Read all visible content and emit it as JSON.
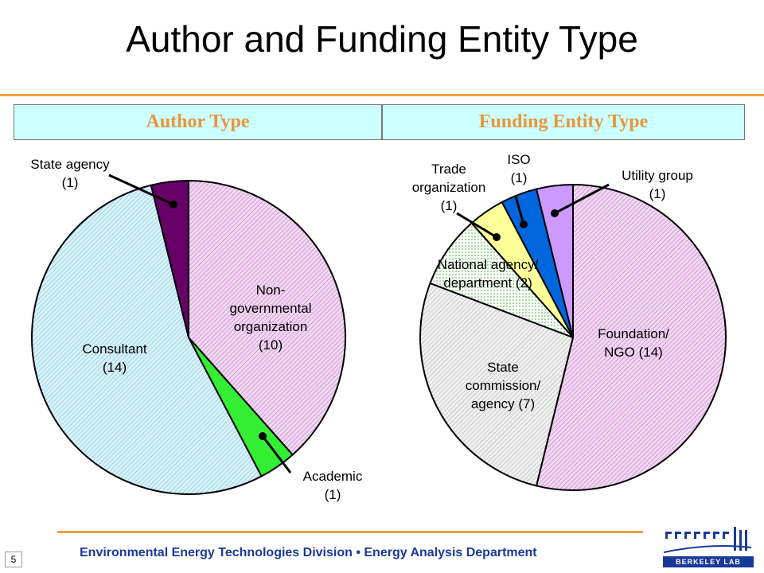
{
  "page": {
    "title": "Author and Funding Entity Type",
    "footer": "Environmental Energy Technologies Division • Energy Analysis Department",
    "page_number": "5",
    "logo_text": "BERKELEY LAB"
  },
  "colors": {
    "accent_rule": "#f0a040",
    "header_bg": "#ccffff",
    "header_text": "#e8963a",
    "footer_text": "#1a3a9a"
  },
  "chart_data": [
    {
      "type": "pie",
      "title": "Author Type",
      "start_angle_deg": 0,
      "direction": "clockwise",
      "slices": [
        {
          "key": "ngo",
          "label_lines": [
            "Non-",
            "governmental",
            "organization"
          ],
          "count_label": "(10)",
          "value": 10,
          "color": "#eec8f0",
          "pattern": "hatch"
        },
        {
          "key": "academic",
          "label_lines": [
            "Academic"
          ],
          "count_label": "(1)",
          "value": 1,
          "color": "#33ee33",
          "pattern": "none"
        },
        {
          "key": "consultant",
          "label_lines": [
            "Consultant"
          ],
          "count_label": "(14)",
          "value": 14,
          "color": "#c8eef8",
          "pattern": "hatch"
        },
        {
          "key": "state_agency",
          "label_lines": [
            "State agency"
          ],
          "count_label": "(1)",
          "value": 1,
          "color": "#660066",
          "pattern": "none"
        }
      ]
    },
    {
      "type": "pie",
      "title": "Funding Entity Type",
      "start_angle_deg": 0,
      "direction": "clockwise",
      "slices": [
        {
          "key": "foundation",
          "label_lines": [
            "Foundation/",
            "NGO (14)"
          ],
          "count_label": "",
          "value": 14,
          "color": "#eec8f0",
          "pattern": "hatch"
        },
        {
          "key": "state_commission",
          "label_lines": [
            "State",
            "commission/",
            "agency (7)"
          ],
          "count_label": "",
          "value": 7,
          "color": "#e0e0e0",
          "pattern": "hatch"
        },
        {
          "key": "national_agency",
          "label_lines": [
            "National agency/",
            "department (2)"
          ],
          "count_label": "",
          "value": 2,
          "color": "#f0fff0",
          "pattern": "dots"
        },
        {
          "key": "trade_org",
          "label_lines": [
            "Trade",
            "organization"
          ],
          "count_label": "(1)",
          "value": 1,
          "color": "#ffff99",
          "pattern": "none"
        },
        {
          "key": "iso",
          "label_lines": [
            "ISO"
          ],
          "count_label": "(1)",
          "value": 1,
          "color": "#0066dd",
          "pattern": "none"
        },
        {
          "key": "utility_group",
          "label_lines": [
            "Utility group"
          ],
          "count_label": "(1)",
          "value": 1,
          "color": "#cc99ff",
          "pattern": "none"
        }
      ]
    }
  ]
}
